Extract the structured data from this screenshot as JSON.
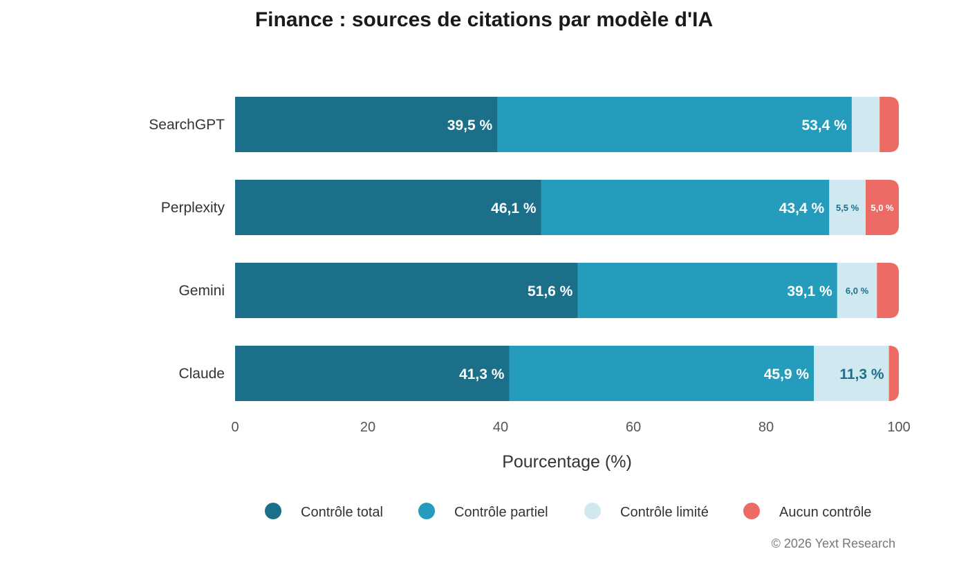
{
  "chart_data": {
    "type": "bar",
    "orientation": "horizontal",
    "stacked": true,
    "title": "Finance : sources de citations par modèle d'IA",
    "xlabel": "Pourcentage (%)",
    "ylabel": "",
    "xlim": [
      0,
      100
    ],
    "x_ticks": [
      "0",
      "20",
      "40",
      "60",
      "80",
      "100"
    ],
    "categories": [
      "SearchGPT",
      "Perplexity",
      "Gemini",
      "Claude"
    ],
    "series": [
      {
        "name": "Contrôle total",
        "color": "#1c6f89",
        "label_color": "#ffffff",
        "values": [
          39.5,
          46.1,
          51.6,
          41.3
        ],
        "labels": [
          "39,5 %",
          "46,1 %",
          "51,6 %",
          "41,3 %"
        ]
      },
      {
        "name": "Contrôle partiel",
        "color": "#259cbc",
        "label_color": "#ffffff",
        "values": [
          53.4,
          43.4,
          39.1,
          45.9
        ],
        "labels": [
          "53,4 %",
          "43,4 %",
          "39,1 %",
          "45,9 %"
        ]
      },
      {
        "name": "Contrôle limité",
        "color": "#d0e8ef",
        "label_color": "#1c6f89",
        "values": [
          4.2,
          5.5,
          6.0,
          11.3
        ],
        "labels": [
          "",
          "5,5 %",
          "6,0 %",
          "11,3 %"
        ]
      },
      {
        "name": "Aucun contrôle",
        "color": "#ec6b64",
        "label_color": "#ffffff",
        "values": [
          2.9,
          5.0,
          3.3,
          1.5
        ],
        "labels": [
          "",
          "5,0 %",
          "",
          ""
        ]
      }
    ],
    "legend_position": "bottom",
    "grid": false,
    "credit": "© 2026 Yext Research"
  }
}
